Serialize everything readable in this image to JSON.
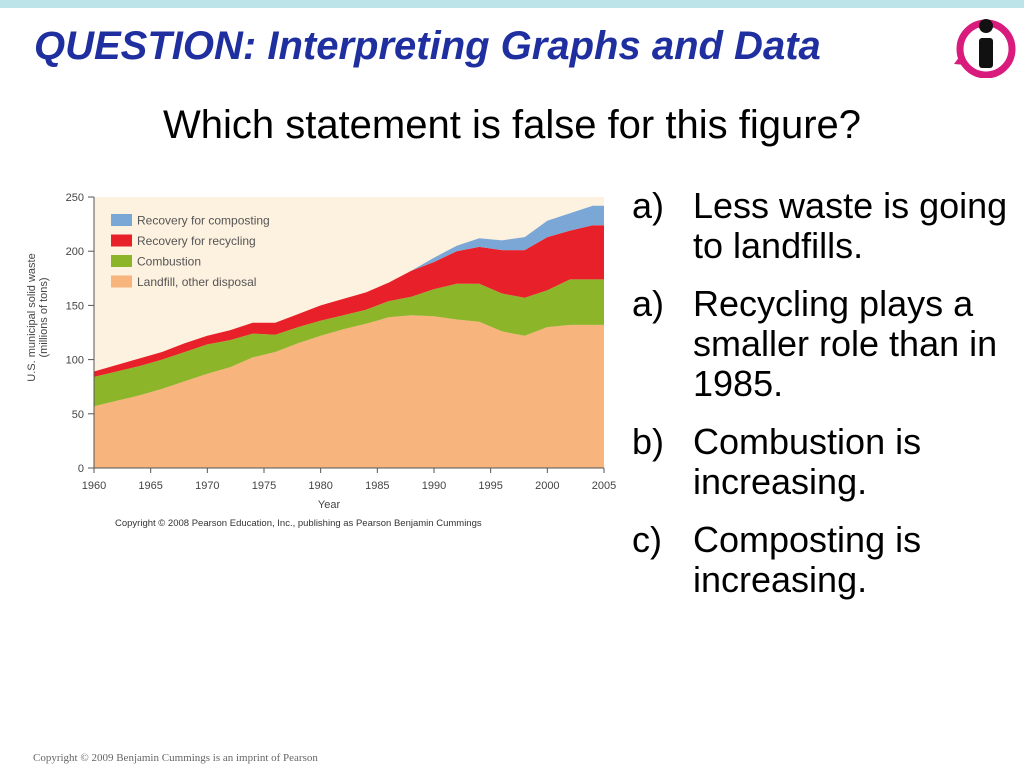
{
  "slide": {
    "title": "QUESTION: Interpreting Graphs and Data",
    "question": "Which statement is false for this figure?",
    "footer": "Copyright © 2009 Benjamin Cummings is an imprint of Pearson",
    "logo_icon": "info-person-icon",
    "colors": {
      "title": "#1f2fa0",
      "topbar": "#bde4e9",
      "logo": "#d81b7c"
    }
  },
  "answers": [
    {
      "marker": "a)",
      "text": "Less waste is going to landfills."
    },
    {
      "marker": "a)",
      "text": "Recycling plays a smaller role than in 1985."
    },
    {
      "marker": "b)",
      "text": "Combustion is increasing."
    },
    {
      "marker": "c)",
      "text": "Composting is increasing."
    }
  ],
  "chart_data": {
    "type": "area",
    "stacked": true,
    "ylabel": "U.S. municipal solid waste (millions of tons)",
    "xlabel": "Year",
    "xlim": [
      1960,
      2005
    ],
    "ylim": [
      0,
      250
    ],
    "x_ticks": [
      1960,
      1965,
      1970,
      1975,
      1980,
      1985,
      1990,
      1995,
      2000,
      2005
    ],
    "y_ticks": [
      0,
      50,
      100,
      150,
      200,
      250
    ],
    "copyright": "Copyright © 2008 Pearson Education, Inc., publishing as Pearson Benjamin Cummings",
    "legend_position": "top-left",
    "plot_background": "#fdf1df",
    "x": [
      1960,
      1962,
      1964,
      1966,
      1968,
      1970,
      1972,
      1974,
      1976,
      1978,
      1980,
      1982,
      1984,
      1986,
      1988,
      1990,
      1992,
      1994,
      1996,
      1998,
      2000,
      2002,
      2004,
      2005
    ],
    "series": [
      {
        "name": "Landfill, other disposal",
        "color": "#f7b47c",
        "values": [
          57,
          62,
          67,
          73,
          80,
          87,
          93,
          102,
          107,
          115,
          122,
          128,
          133,
          139,
          141,
          140,
          137,
          135,
          126,
          122,
          130,
          132,
          132,
          132
        ]
      },
      {
        "name": "Combustion",
        "color": "#8db52a",
        "values": [
          27,
          27,
          27,
          27,
          27,
          27,
          25,
          22,
          16,
          15,
          14,
          13,
          13,
          15,
          17,
          25,
          33,
          35,
          35,
          35,
          34,
          42,
          42,
          42
        ]
      },
      {
        "name": "Recovery for recycling",
        "color": "#e8202a",
        "values": [
          5,
          6,
          7,
          7,
          8,
          8,
          9,
          10,
          11,
          12,
          14,
          15,
          16,
          17,
          24,
          25,
          30,
          34,
          40,
          44,
          49,
          45,
          50,
          50
        ]
      },
      {
        "name": "Recovery for composting",
        "color": "#7ba7d6",
        "values": [
          0,
          0,
          0,
          0,
          0,
          0,
          0,
          0,
          0,
          0,
          0,
          0,
          0,
          0,
          0,
          4,
          5,
          8,
          9,
          12,
          15,
          16,
          18,
          18
        ]
      }
    ]
  }
}
